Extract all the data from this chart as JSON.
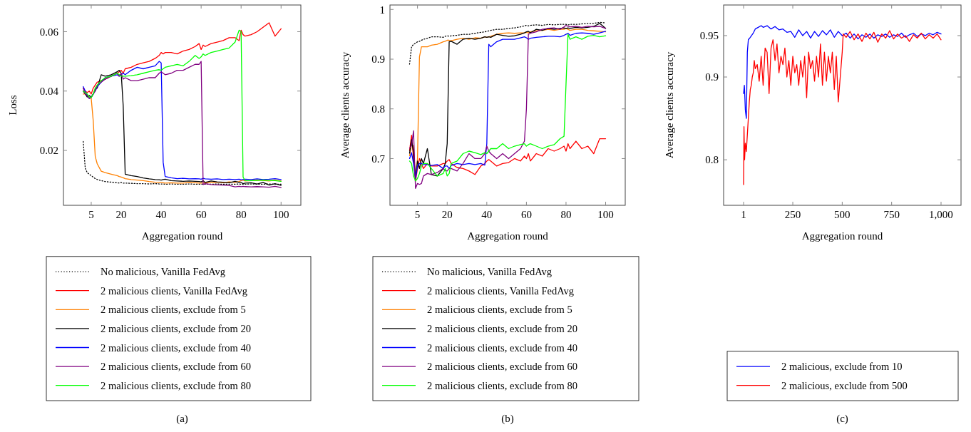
{
  "chart_data": [
    {
      "type": "line",
      "xlabel": "Aggregation round",
      "ylabel": "Loss",
      "xlim": [
        -8.9,
        109.9
      ],
      "ylim": [
        0.0015,
        0.069
      ],
      "xticks": [
        5,
        20,
        40,
        60,
        80,
        100
      ],
      "yticks": [
        0.02,
        0.04,
        0.06
      ],
      "legend": "bottom",
      "annotations": [
        "(a)"
      ],
      "x": [
        1,
        2,
        3,
        4,
        5,
        6,
        7,
        8,
        10,
        12,
        15,
        18,
        19,
        20,
        21,
        22,
        25,
        28,
        31,
        34,
        37,
        39,
        40,
        41,
        42,
        45,
        48,
        51,
        54,
        57,
        59,
        60,
        61,
        62,
        65,
        68,
        71,
        74,
        77,
        79,
        80,
        81,
        82,
        85,
        88,
        91,
        94,
        97,
        100
      ],
      "series": [
        {
          "name": "No malicious, Vanilla FedAvg",
          "color": "#000000",
          "line_style": "dotted",
          "values": [
            0.023,
            0.014,
            0.0125,
            0.012,
            0.0115,
            0.011,
            0.0105,
            0.0102,
            0.0098,
            0.0095,
            0.0093,
            0.0091,
            0.009,
            0.0092,
            0.009,
            0.009,
            0.0089,
            0.0088,
            0.0088,
            0.0087,
            0.0088,
            0.0087,
            0.0087,
            0.0087,
            0.0086,
            0.0087,
            0.0086,
            0.0086,
            0.0087,
            0.0086,
            0.0086,
            0.0086,
            0.0086,
            0.0086,
            0.0086,
            0.0087,
            0.0086,
            0.0086,
            0.0086,
            0.0087,
            0.0086,
            0.0086,
            0.0086,
            0.0087,
            0.0086,
            0.0086,
            0.0087,
            0.0086,
            0.0086
          ]
        },
        {
          "name": "2 malicious clients, Vanilla FedAvg",
          "color": "#ff0000",
          "values": [
            0.041,
            0.04,
            0.0395,
            0.04,
            0.039,
            0.041,
            0.042,
            0.043,
            0.0435,
            0.044,
            0.045,
            0.046,
            0.0465,
            0.047,
            0.046,
            0.0475,
            0.048,
            0.049,
            0.0495,
            0.05,
            0.051,
            0.052,
            0.053,
            0.0525,
            0.053,
            0.053,
            0.0525,
            0.0535,
            0.054,
            0.055,
            0.056,
            0.054,
            0.0555,
            0.055,
            0.056,
            0.0565,
            0.057,
            0.058,
            0.058,
            0.057,
            0.0605,
            0.059,
            0.0585,
            0.059,
            0.06,
            0.0615,
            0.063,
            0.0585,
            0.061
          ]
        },
        {
          "name": "2 malicious clients, exclude from 5",
          "color": "#ff8000",
          "values": [
            0.039,
            0.039,
            0.0385,
            0.038,
            0.0375,
            0.03,
            0.018,
            0.0155,
            0.013,
            0.0125,
            0.012,
            0.0115,
            0.0112,
            0.011,
            0.0108,
            0.0105,
            0.0102,
            0.01,
            0.0098,
            0.0095,
            0.0093,
            0.0092,
            0.0092,
            0.0091,
            0.009,
            0.0091,
            0.009,
            0.009,
            0.0092,
            0.0091,
            0.009,
            0.009,
            0.0091,
            0.009,
            0.0092,
            0.0093,
            0.0091,
            0.0094,
            0.0092,
            0.0095,
            0.0098,
            0.01,
            0.0097,
            0.0098,
            0.01,
            0.0099,
            0.0097,
            0.01,
            0.0097
          ]
        },
        {
          "name": "2 malicious clients, exclude from 20",
          "color": "#000000",
          "values": [
            0.04,
            0.039,
            0.038,
            0.0385,
            0.038,
            0.039,
            0.0405,
            0.041,
            0.0455,
            0.045,
            0.0455,
            0.0465,
            0.047,
            0.046,
            0.035,
            0.012,
            0.0115,
            0.0112,
            0.0107,
            0.0104,
            0.0102,
            0.0101,
            0.01,
            0.0102,
            0.0103,
            0.0098,
            0.0097,
            0.0096,
            0.0097,
            0.0096,
            0.0095,
            0.0094,
            0.0098,
            0.0092,
            0.0097,
            0.0094,
            0.0093,
            0.0091,
            0.0096,
            0.0092,
            0.0092,
            0.0088,
            0.009,
            0.0091,
            0.0087,
            0.0092,
            0.0083,
            0.0088,
            0.0082
          ]
        },
        {
          "name": "2 malicious clients, exclude from 40",
          "color": "#0000ff",
          "values": [
            0.0415,
            0.04,
            0.0385,
            0.0375,
            0.038,
            0.039,
            0.04,
            0.0415,
            0.043,
            0.0445,
            0.045,
            0.0455,
            0.045,
            0.0455,
            0.046,
            0.0455,
            0.047,
            0.048,
            0.0475,
            0.048,
            0.0485,
            0.05,
            0.0495,
            0.016,
            0.0112,
            0.0108,
            0.0105,
            0.0106,
            0.0104,
            0.0105,
            0.0104,
            0.0103,
            0.0106,
            0.0104,
            0.0103,
            0.0104,
            0.0102,
            0.0103,
            0.0102,
            0.0103,
            0.0101,
            0.0102,
            0.0103,
            0.0102,
            0.0104,
            0.0102,
            0.0103,
            0.0105,
            0.0102
          ]
        },
        {
          "name": "2 malicious clients, exclude from 60",
          "color": "#800080",
          "values": [
            0.041,
            0.039,
            0.0385,
            0.0375,
            0.0378,
            0.039,
            0.04,
            0.042,
            0.043,
            0.044,
            0.045,
            0.046,
            0.045,
            0.046,
            0.044,
            0.0445,
            0.0435,
            0.0435,
            0.044,
            0.0445,
            0.0445,
            0.046,
            0.0465,
            0.046,
            0.0455,
            0.046,
            0.047,
            0.047,
            0.048,
            0.049,
            0.049,
            0.05,
            0.0085,
            0.0088,
            0.0085,
            0.0084,
            0.0083,
            0.0082,
            0.0077,
            0.0079,
            0.0078,
            0.0079,
            0.0078,
            0.0077,
            0.0078,
            0.0077,
            0.0076,
            0.0079,
            0.0075
          ]
        },
        {
          "name": "2 malicious clients, exclude from 80",
          "color": "#00ff00",
          "values": [
            0.04,
            0.0395,
            0.039,
            0.038,
            0.0378,
            0.039,
            0.041,
            0.042,
            0.0435,
            0.0445,
            0.045,
            0.046,
            0.0455,
            0.045,
            0.045,
            0.045,
            0.0452,
            0.0455,
            0.046,
            0.0465,
            0.047,
            0.0472,
            0.047,
            0.0475,
            0.048,
            0.0485,
            0.049,
            0.0485,
            0.05,
            0.052,
            0.051,
            0.0515,
            0.0525,
            0.052,
            0.053,
            0.0535,
            0.054,
            0.0545,
            0.0565,
            0.0605,
            0.06,
            0.011,
            0.0098,
            0.0098,
            0.0099,
            0.01,
            0.0099,
            0.0098,
            0.0096
          ]
        }
      ]
    },
    {
      "type": "line",
      "xlabel": "Aggregation round",
      "ylabel": "Average clients accuracy",
      "xlim": [
        -8.9,
        109.9
      ],
      "ylim": [
        0.606,
        1.009
      ],
      "xticks": [
        5,
        20,
        40,
        60,
        80,
        100
      ],
      "yticks": [
        0.7,
        0.8,
        0.9,
        1
      ],
      "legend": "bottom",
      "annotations": [
        "(b)"
      ],
      "x": [
        1,
        2,
        3,
        4,
        5,
        6,
        7,
        8,
        10,
        12,
        15,
        18,
        19,
        20,
        21,
        22,
        25,
        28,
        31,
        34,
        37,
        39,
        40,
        41,
        42,
        45,
        48,
        51,
        54,
        57,
        59,
        60,
        61,
        62,
        65,
        68,
        71,
        74,
        77,
        79,
        80,
        81,
        82,
        85,
        88,
        91,
        94,
        97,
        100
      ],
      "series": [
        {
          "name": "No malicious, Vanilla FedAvg",
          "color": "#000000",
          "line_style": "dotted",
          "values": [
            0.89,
            0.925,
            0.93,
            0.932,
            0.935,
            0.936,
            0.938,
            0.94,
            0.942,
            0.945,
            0.945,
            0.944,
            0.946,
            0.947,
            0.946,
            0.947,
            0.948,
            0.95,
            0.95,
            0.952,
            0.954,
            0.955,
            0.956,
            0.957,
            0.958,
            0.96,
            0.96,
            0.962,
            0.963,
            0.965,
            0.967,
            0.968,
            0.967,
            0.968,
            0.969,
            0.968,
            0.97,
            0.969,
            0.97,
            0.97,
            0.97,
            0.969,
            0.97,
            0.97,
            0.971,
            0.972,
            0.972,
            0.974,
            0.973
          ]
        },
        {
          "name": "2 malicious clients, Vanilla FedAvg",
          "color": "#ff0000",
          "values": [
            0.716,
            0.747,
            0.7,
            0.655,
            0.68,
            0.7,
            0.69,
            0.68,
            0.69,
            0.685,
            0.685,
            0.69,
            0.69,
            0.695,
            0.698,
            0.69,
            0.682,
            0.68,
            0.675,
            0.668,
            0.685,
            0.69,
            0.695,
            0.698,
            0.695,
            0.685,
            0.69,
            0.692,
            0.7,
            0.695,
            0.705,
            0.7,
            0.71,
            0.695,
            0.71,
            0.705,
            0.72,
            0.715,
            0.72,
            0.725,
            0.715,
            0.73,
            0.72,
            0.735,
            0.72,
            0.725,
            0.71,
            0.74,
            0.74
          ]
        },
        {
          "name": "2 malicious clients, exclude from 5",
          "color": "#ff8000",
          "values": [
            0.706,
            0.728,
            0.725,
            0.66,
            0.7,
            0.905,
            0.925,
            0.925,
            0.925,
            0.928,
            0.93,
            0.935,
            0.936,
            0.938,
            0.938,
            0.937,
            0.94,
            0.942,
            0.94,
            0.943,
            0.942,
            0.945,
            0.944,
            0.945,
            0.946,
            0.95,
            0.952,
            0.953,
            0.952,
            0.953,
            0.953,
            0.954,
            0.953,
            0.955,
            0.957,
            0.958,
            0.96,
            0.958,
            0.96,
            0.96,
            0.962,
            0.96,
            0.958,
            0.96,
            0.96,
            0.958,
            0.957,
            0.956,
            0.955
          ]
        },
        {
          "name": "2 malicious clients, exclude from 20",
          "color": "#000000",
          "values": [
            0.711,
            0.738,
            0.712,
            0.66,
            0.695,
            0.68,
            0.7,
            0.69,
            0.72,
            0.668,
            0.665,
            0.68,
            0.69,
            0.73,
            0.935,
            0.936,
            0.93,
            0.94,
            0.942,
            0.94,
            0.942,
            0.945,
            0.944,
            0.945,
            0.944,
            0.95,
            0.948,
            0.946,
            0.947,
            0.95,
            0.953,
            0.955,
            0.956,
            0.953,
            0.96,
            0.958,
            0.962,
            0.96,
            0.962,
            0.963,
            0.962,
            0.963,
            0.962,
            0.964,
            0.963,
            0.964,
            0.966,
            0.972,
            0.962
          ]
        },
        {
          "name": "2 malicious clients, exclude from 40",
          "color": "#0000ff",
          "values": [
            0.7,
            0.712,
            0.69,
            0.66,
            0.685,
            0.69,
            0.69,
            0.688,
            0.688,
            0.686,
            0.688,
            0.68,
            0.685,
            0.685,
            0.68,
            0.686,
            0.69,
            0.688,
            0.69,
            0.688,
            0.69,
            0.687,
            0.73,
            0.93,
            0.925,
            0.935,
            0.94,
            0.94,
            0.94,
            0.943,
            0.945,
            0.943,
            0.94,
            0.942,
            0.944,
            0.945,
            0.946,
            0.946,
            0.945,
            0.948,
            0.95,
            0.952,
            0.948,
            0.952,
            0.953,
            0.952,
            0.95,
            0.953,
            0.956
          ]
        },
        {
          "name": "2 malicious clients, exclude from 60",
          "color": "#800080",
          "values": [
            0.721,
            0.726,
            0.756,
            0.64,
            0.65,
            0.648,
            0.65,
            0.665,
            0.67,
            0.668,
            0.672,
            0.68,
            0.676,
            0.675,
            0.68,
            0.68,
            0.675,
            0.69,
            0.71,
            0.7,
            0.7,
            0.71,
            0.725,
            0.715,
            0.71,
            0.7,
            0.71,
            0.7,
            0.71,
            0.72,
            0.735,
            0.8,
            0.95,
            0.952,
            0.955,
            0.96,
            0.962,
            0.963,
            0.96,
            0.965,
            0.968,
            0.966,
            0.965,
            0.966,
            0.964,
            0.966,
            0.965,
            0.966,
            0.962
          ]
        },
        {
          "name": "2 malicious clients, exclude from 80",
          "color": "#00ff00",
          "values": [
            0.695,
            0.69,
            0.665,
            0.655,
            0.66,
            0.67,
            0.685,
            0.69,
            0.69,
            0.68,
            0.665,
            0.67,
            0.68,
            0.665,
            0.67,
            0.69,
            0.695,
            0.71,
            0.715,
            0.712,
            0.708,
            0.712,
            0.71,
            0.715,
            0.72,
            0.72,
            0.73,
            0.72,
            0.725,
            0.728,
            0.73,
            0.725,
            0.728,
            0.73,
            0.725,
            0.72,
            0.725,
            0.728,
            0.74,
            0.745,
            0.85,
            0.95,
            0.94,
            0.945,
            0.94,
            0.946,
            0.948,
            0.945,
            0.947
          ]
        }
      ]
    },
    {
      "type": "line",
      "xlabel": "Aggregation round",
      "ylabel": "Average clients accuracy",
      "xlim": [
        -100,
        1101
      ],
      "ylim": [
        0.745,
        0.987
      ],
      "xticks": [
        1,
        250,
        500,
        750,
        {
          "value": 1000,
          "label": "1,000"
        }
      ],
      "yticks": [
        0.8,
        0.9,
        0.95
      ],
      "legend": "bottom",
      "annotations": [
        "(c)"
      ],
      "series": [
        {
          "name": "2 malicious, exclude from 10",
          "color": "#0000ff",
          "x": [
            1,
            5,
            10,
            15,
            20,
            25,
            35,
            50,
            60,
            75,
            90,
            100,
            120,
            140,
            160,
            180,
            200,
            220,
            240,
            260,
            280,
            300,
            320,
            340,
            360,
            380,
            400,
            420,
            440,
            460,
            480,
            500,
            520,
            540,
            560,
            580,
            600,
            620,
            640,
            660,
            680,
            700,
            720,
            740,
            760,
            780,
            800,
            820,
            840,
            860,
            880,
            900,
            920,
            940,
            960,
            980,
            1000
          ],
          "values": [
            0.88,
            0.89,
            0.86,
            0.85,
            0.93,
            0.945,
            0.948,
            0.953,
            0.958,
            0.96,
            0.962,
            0.96,
            0.962,
            0.958,
            0.961,
            0.957,
            0.958,
            0.954,
            0.955,
            0.948,
            0.957,
            0.95,
            0.955,
            0.947,
            0.955,
            0.949,
            0.956,
            0.951,
            0.957,
            0.948,
            0.955,
            0.95,
            0.953,
            0.947,
            0.952,
            0.946,
            0.951,
            0.948,
            0.952,
            0.947,
            0.951,
            0.949,
            0.952,
            0.948,
            0.951,
            0.949,
            0.953,
            0.948,
            0.951,
            0.953,
            0.949,
            0.952,
            0.95,
            0.953,
            0.951,
            0.954,
            0.952
          ]
        },
        {
          "name": "2 malicious, exclude from 500",
          "color": "#ff0000",
          "x": [
            1,
            3,
            6,
            10,
            15,
            20,
            25,
            30,
            35,
            40,
            45,
            50,
            55,
            60,
            70,
            80,
            90,
            100,
            110,
            120,
            130,
            140,
            150,
            160,
            170,
            180,
            190,
            200,
            210,
            220,
            230,
            240,
            250,
            260,
            270,
            280,
            290,
            300,
            310,
            320,
            330,
            340,
            350,
            360,
            370,
            380,
            390,
            400,
            410,
            420,
            430,
            440,
            450,
            460,
            470,
            480,
            490,
            500,
            505,
            520,
            540,
            560,
            580,
            600,
            620,
            640,
            660,
            680,
            700,
            720,
            740,
            760,
            780,
            800,
            820,
            840,
            860,
            880,
            900,
            920,
            940,
            960,
            980,
            1000
          ],
          "values": [
            0.77,
            0.84,
            0.8,
            0.82,
            0.81,
            0.83,
            0.85,
            0.87,
            0.885,
            0.89,
            0.9,
            0.905,
            0.92,
            0.91,
            0.915,
            0.895,
            0.925,
            0.89,
            0.935,
            0.93,
            0.88,
            0.935,
            0.945,
            0.92,
            0.94,
            0.905,
            0.925,
            0.915,
            0.935,
            0.9,
            0.92,
            0.89,
            0.925,
            0.905,
            0.915,
            0.89,
            0.92,
            0.9,
            0.925,
            0.875,
            0.93,
            0.91,
            0.92,
            0.895,
            0.925,
            0.9,
            0.94,
            0.89,
            0.93,
            0.895,
            0.925,
            0.905,
            0.93,
            0.885,
            0.925,
            0.87,
            0.9,
            0.93,
            0.952,
            0.948,
            0.955,
            0.945,
            0.952,
            0.943,
            0.953,
            0.946,
            0.954,
            0.942,
            0.952,
            0.947,
            0.956,
            0.946,
            0.952,
            0.947,
            0.95,
            0.943,
            0.951,
            0.947,
            0.953,
            0.946,
            0.951,
            0.947,
            0.952,
            0.945
          ]
        }
      ]
    }
  ]
}
